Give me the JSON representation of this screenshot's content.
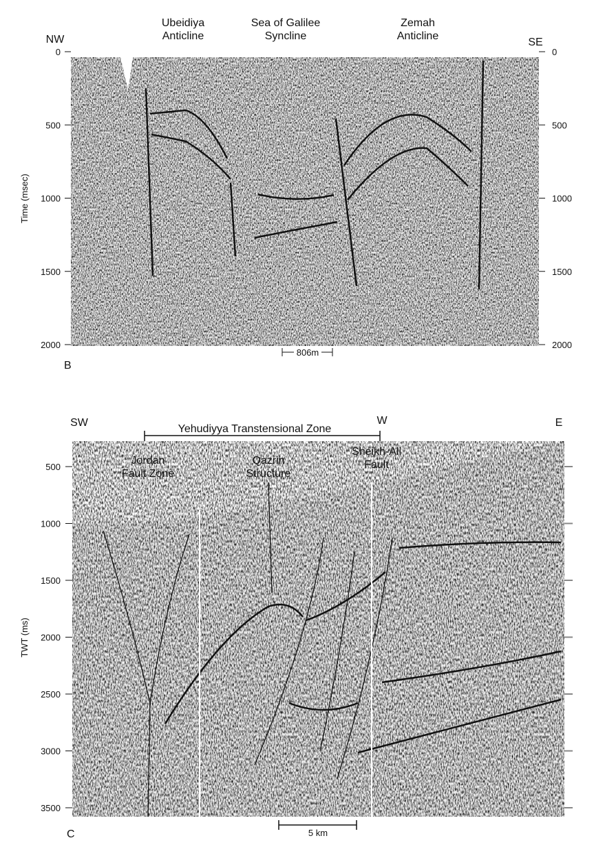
{
  "panel_b": {
    "label": "B",
    "y_axis_title": "Time (msec)",
    "left_corner": "NW",
    "right_corner": "SE",
    "ticks": [
      0,
      500,
      1000,
      1500,
      2000
    ],
    "annotations": [
      "Ubeidiya\nAnticline",
      "Sea of Galilee\nSyncline",
      "Zemah\nAnticline"
    ],
    "scale_bar": "806m"
  },
  "panel_c": {
    "label": "C",
    "y_axis_title": "TWT (ms)",
    "left_corner": "SW",
    "right_corner": "E",
    "zone_end": "W",
    "zone": "Yehudiyya Transtensional Zone",
    "ticks": [
      500,
      1000,
      1500,
      2000,
      2500,
      3000,
      3500
    ],
    "annotations": [
      "Jordan\nFault Zone",
      "Qazrin\nStructure",
      "Sheikh-Ali\nFault"
    ],
    "scale_bar": "5 km"
  }
}
